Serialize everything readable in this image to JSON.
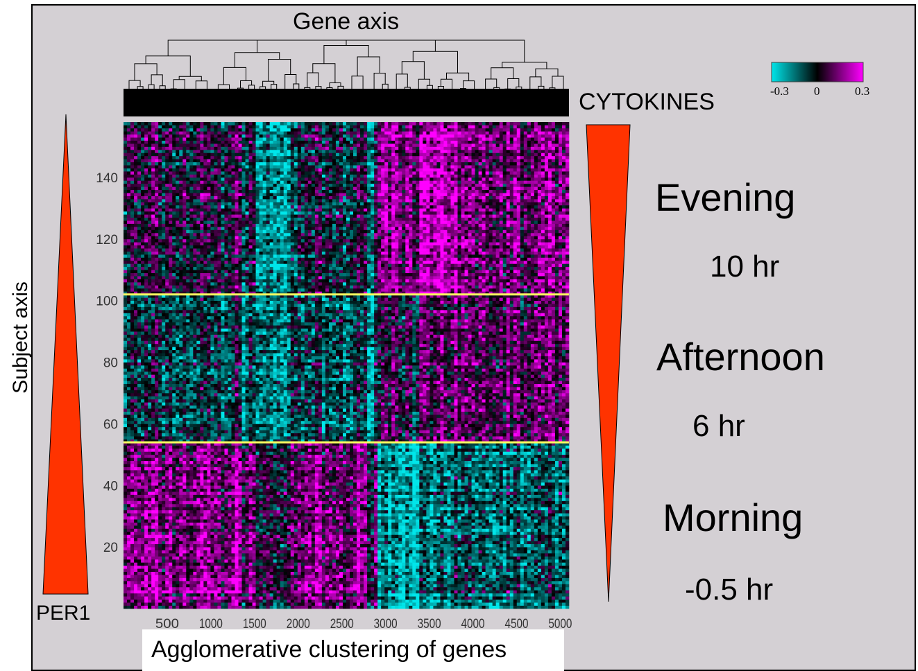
{
  "chart_data": {
    "type": "heatmap",
    "top_label": "Gene axis",
    "xlabel": "Agglomerative clustering of genes",
    "ylabel": "Subject axis",
    "x_ticks": [
      500,
      1000,
      1500,
      2000,
      2500,
      3000,
      3500,
      4000,
      4500,
      5000
    ],
    "y_ticks": [
      20,
      40,
      60,
      80,
      100,
      120,
      140
    ],
    "xlim": [
      0,
      5100
    ],
    "ylim": [
      0,
      158
    ],
    "colorbar": {
      "min_label": "-0.3",
      "mid_label": "0",
      "max_label": "0.3",
      "min": -0.3,
      "max": 0.3,
      "colors": [
        "#00e6ea",
        "#000000",
        "#ff00ff"
      ]
    },
    "boundary_lines_subject": [
      54,
      102
    ],
    "boundary_line_color": "#ffff60",
    "gene_clusters": [
      {
        "x_range": [
          0,
          1500
        ],
        "bands": [
          {
            "y_range": [
              0,
              54
            ],
            "mean": 0.14
          },
          {
            "y_range": [
              54,
              102
            ],
            "mean": -0.06
          },
          {
            "y_range": [
              102,
              158
            ],
            "mean": 0.02
          }
        ]
      },
      {
        "x_range": [
          1500,
          2000
        ],
        "bands": [
          {
            "y_range": [
              0,
              54
            ],
            "mean": 0.02
          },
          {
            "y_range": [
              54,
              102
            ],
            "mean": -0.14
          },
          {
            "y_range": [
              102,
              158
            ],
            "mean": -0.18
          }
        ]
      },
      {
        "x_range": [
          2000,
          2900
        ],
        "bands": [
          {
            "y_range": [
              0,
              54
            ],
            "mean": 0.12
          },
          {
            "y_range": [
              54,
              102
            ],
            "mean": -0.08
          },
          {
            "y_range": [
              102,
              158
            ],
            "mean": -0.02
          }
        ]
      },
      {
        "x_range": [
          2900,
          3800
        ],
        "bands": [
          {
            "y_range": [
              0,
              54
            ],
            "mean": -0.18
          },
          {
            "y_range": [
              54,
              102
            ],
            "mean": 0.06
          },
          {
            "y_range": [
              102,
              158
            ],
            "mean": 0.18
          }
        ]
      },
      {
        "x_range": [
          3800,
          5100
        ],
        "bands": [
          {
            "y_range": [
              0,
              54
            ],
            "mean": -0.12
          },
          {
            "y_range": [
              54,
              102
            ],
            "mean": 0.1
          },
          {
            "y_range": [
              102,
              158
            ],
            "mean": 0.12
          }
        ]
      }
    ],
    "left_triangle_label": "PER1",
    "right_triangle_label": "CYTOKINES",
    "triangle_color": "#ff3300",
    "time_annotations": [
      {
        "period": "Evening",
        "time": "10 hr"
      },
      {
        "period": "Afternoon",
        "time": "6 hr"
      },
      {
        "period": "Morning",
        "time": "-0.5 hr"
      }
    ]
  }
}
